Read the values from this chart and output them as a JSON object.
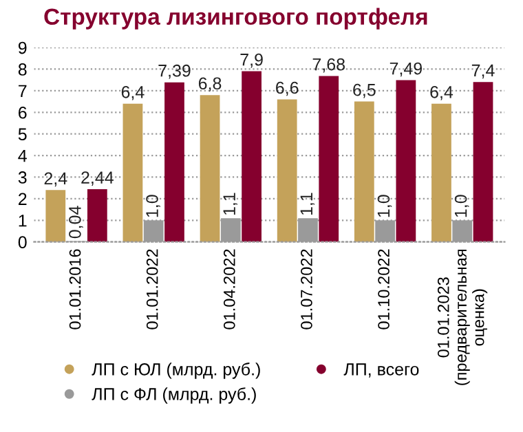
{
  "chart_data": {
    "type": "bar",
    "title": "Структура лизингового портфеля",
    "categories": [
      "01.01.2016",
      "01.01.2022",
      "01.04.2022",
      "01.07.2022",
      "01.10.2022",
      "01.01.2023\n(предварительная\nоценка)"
    ],
    "series": [
      {
        "name": "ЛП с ЮЛ (млрд. руб.)",
        "color": "#c4a25a",
        "values": [
          2.4,
          6.4,
          6.8,
          6.6,
          6.5,
          6.4
        ],
        "value_labels": [
          "2,4",
          "6,4",
          "6,8",
          "6,6",
          "6,5",
          "6,4"
        ]
      },
      {
        "name": "ЛП с ФЛ (млрд. руб.)",
        "color": "#9a9a9a",
        "values": [
          0.04,
          1.0,
          1.1,
          1.1,
          1.0,
          1.0
        ],
        "value_labels": [
          "0,04",
          "1,0",
          "1,1",
          "1,1",
          "1,0",
          "1,0"
        ]
      },
      {
        "name": "ЛП, всего",
        "color": "#85002e",
        "values": [
          2.44,
          7.39,
          7.9,
          7.68,
          7.49,
          7.4
        ],
        "value_labels": [
          "2,44",
          "7,39",
          "7,9",
          "7,68",
          "7,49",
          "7,4"
        ]
      }
    ],
    "ylim": [
      0,
      9
    ],
    "yticks": [
      0,
      1,
      2,
      3,
      4,
      5,
      6,
      7,
      8,
      9
    ],
    "grid": "y",
    "legend": "bottom"
  }
}
